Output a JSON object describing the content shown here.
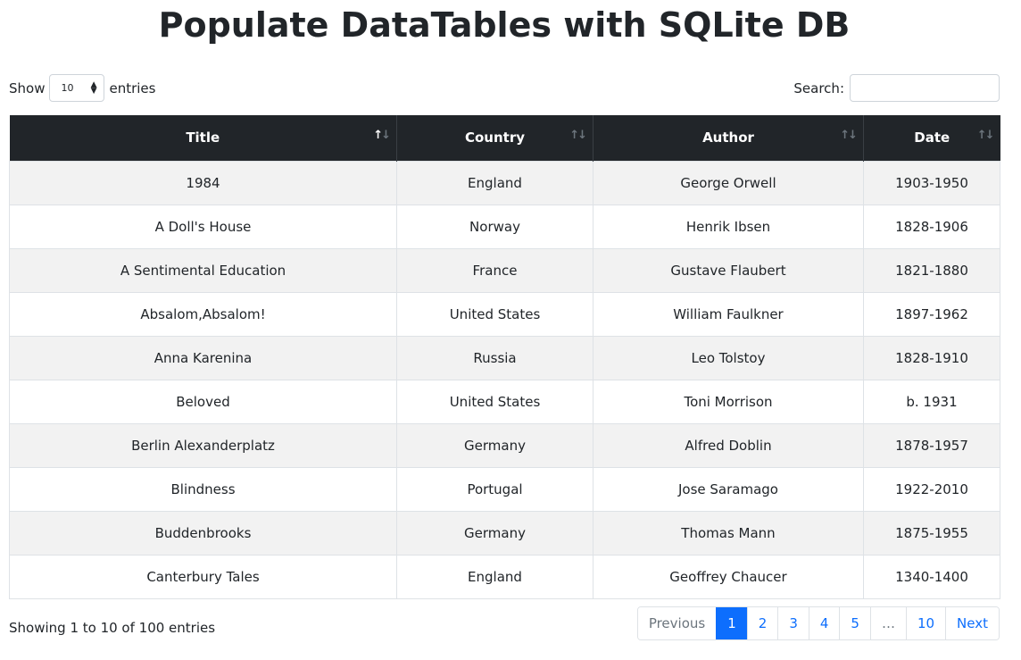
{
  "title": "Populate DataTables with SQLite DB",
  "length": {
    "show_label": "Show",
    "value": "10",
    "entries_label": "entries"
  },
  "search": {
    "label": "Search:",
    "value": "",
    "placeholder": ""
  },
  "table": {
    "columns": [
      "Title",
      "Country",
      "Author",
      "Date"
    ],
    "sorted_column": "Title",
    "rows": [
      [
        "1984",
        "England",
        "George Orwell",
        "1903-1950"
      ],
      [
        "A Doll's House",
        "Norway",
        "Henrik Ibsen",
        "1828-1906"
      ],
      [
        "A Sentimental Education",
        "France",
        "Gustave Flaubert",
        "1821-1880"
      ],
      [
        "Absalom,Absalom!",
        "United States",
        "William Faulkner",
        "1897-1962"
      ],
      [
        "Anna Karenina",
        "Russia",
        "Leo Tolstoy",
        "1828-1910"
      ],
      [
        "Beloved",
        "United States",
        "Toni Morrison",
        "b. 1931"
      ],
      [
        "Berlin Alexanderplatz",
        "Germany",
        "Alfred Doblin",
        "1878-1957"
      ],
      [
        "Blindness",
        "Portugal",
        "Jose Saramago",
        "1922-2010"
      ],
      [
        "Buddenbrooks",
        "Germany",
        "Thomas Mann",
        "1875-1955"
      ],
      [
        "Canterbury Tales",
        "England",
        "Geoffrey Chaucer",
        "1340-1400"
      ]
    ]
  },
  "info": "Showing 1 to 10 of 100 entries",
  "pagination": {
    "previous": "Previous",
    "pages": [
      "1",
      "2",
      "3",
      "4",
      "5",
      "…",
      "10"
    ],
    "active": "1",
    "next": "Next"
  },
  "colors": {
    "header_bg": "#212529",
    "accent": "#0d6efd",
    "stripe": "#f2f2f2"
  },
  "icons": {
    "sort": "sort-arrows-icon",
    "select": "select-arrows-icon"
  }
}
